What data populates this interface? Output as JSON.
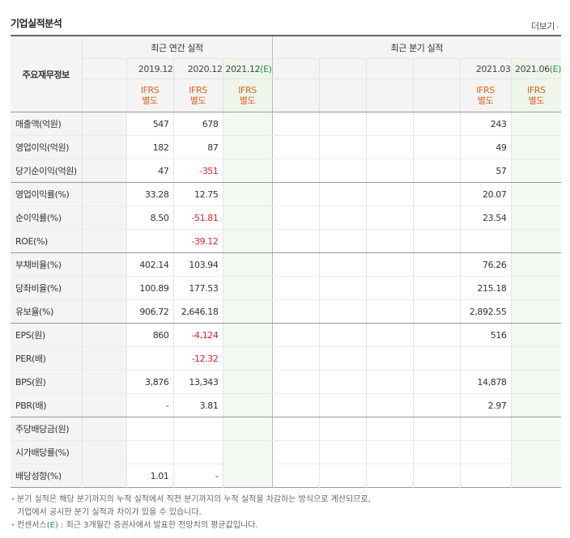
{
  "header": {
    "title": "기업실적분석",
    "more_label": "더보기"
  },
  "table": {
    "row_header_label": "주요재무정보",
    "annual_label": "최근 연간 실적",
    "quarterly_label": "최근 분기 실적",
    "periods": {
      "a2019": "2019.12",
      "a2020": "2020.12",
      "a2021": "2021.12",
      "a2021_e": "(E)",
      "q202103": "2021.03",
      "q202106": "2021.06",
      "q202106_e": "(E)"
    },
    "basis_top": "IFRS",
    "basis_bottom": "별도",
    "rows": [
      {
        "label": "매출액(억원)",
        "a2019": "547",
        "a2020": "678",
        "q202103": "243"
      },
      {
        "label": "영업이익(억원)",
        "a2019": "182",
        "a2020": "87",
        "q202103": "49"
      },
      {
        "label": "당기순이익(억원)",
        "a2019": "47",
        "a2020": "-351",
        "q202103": "57"
      },
      {
        "label": "영업이익률(%)",
        "a2019": "33.28",
        "a2020": "12.75",
        "q202103": "20.07"
      },
      {
        "label": "순이익률(%)",
        "a2019": "8.50",
        "a2020": "-51.81",
        "q202103": "23.54"
      },
      {
        "label": "ROE(%)",
        "a2019": "",
        "a2020": "-39.12",
        "q202103": ""
      },
      {
        "label": "부채비율(%)",
        "a2019": "402.14",
        "a2020": "103.94",
        "q202103": "76.26"
      },
      {
        "label": "당좌비율(%)",
        "a2019": "100.89",
        "a2020": "177.53",
        "q202103": "215.18"
      },
      {
        "label": "유보율(%)",
        "a2019": "906.72",
        "a2020": "2,646.18",
        "q202103": "2,892.55"
      },
      {
        "label": "EPS(원)",
        "a2019": "860",
        "a2020": "-4,124",
        "q202103": "516"
      },
      {
        "label": "PER(배)",
        "a2019": "",
        "a2020": "-12.32",
        "q202103": ""
      },
      {
        "label": "BPS(원)",
        "a2019": "3,876",
        "a2020": "13,343",
        "q202103": "14,878"
      },
      {
        "label": "PBR(배)",
        "a2019": "-",
        "a2020": "3.81",
        "q202103": "2.97"
      },
      {
        "label": "주당배당금(원)",
        "a2019": "",
        "a2020": "",
        "q202103": ""
      },
      {
        "label": "시가배당률(%)",
        "a2019": "",
        "a2020": "",
        "q202103": ""
      },
      {
        "label": "배당성향(%)",
        "a2019": "1.01",
        "a2020": "-",
        "q202103": ""
      }
    ]
  },
  "notes": {
    "line1": "분기 실적은 해당 분기까지의 누적 실적에서 직전 분기까지의 누적 실적을 차감하는 방식으로 계산되므로,",
    "line2": "기업에서 공시한 분기 실적과 차이가 있을 수 있습니다.",
    "line3_pre": "컨센서스(",
    "line3_e": "E",
    "line3_post": ") : 최근 3개월간 증권사에서 발표한 전망치의 평균값입니다."
  },
  "colors": {
    "accent_orange": "#e5601b",
    "negative_red": "#e31f1f",
    "estimate_green": "#1d9a3f"
  }
}
